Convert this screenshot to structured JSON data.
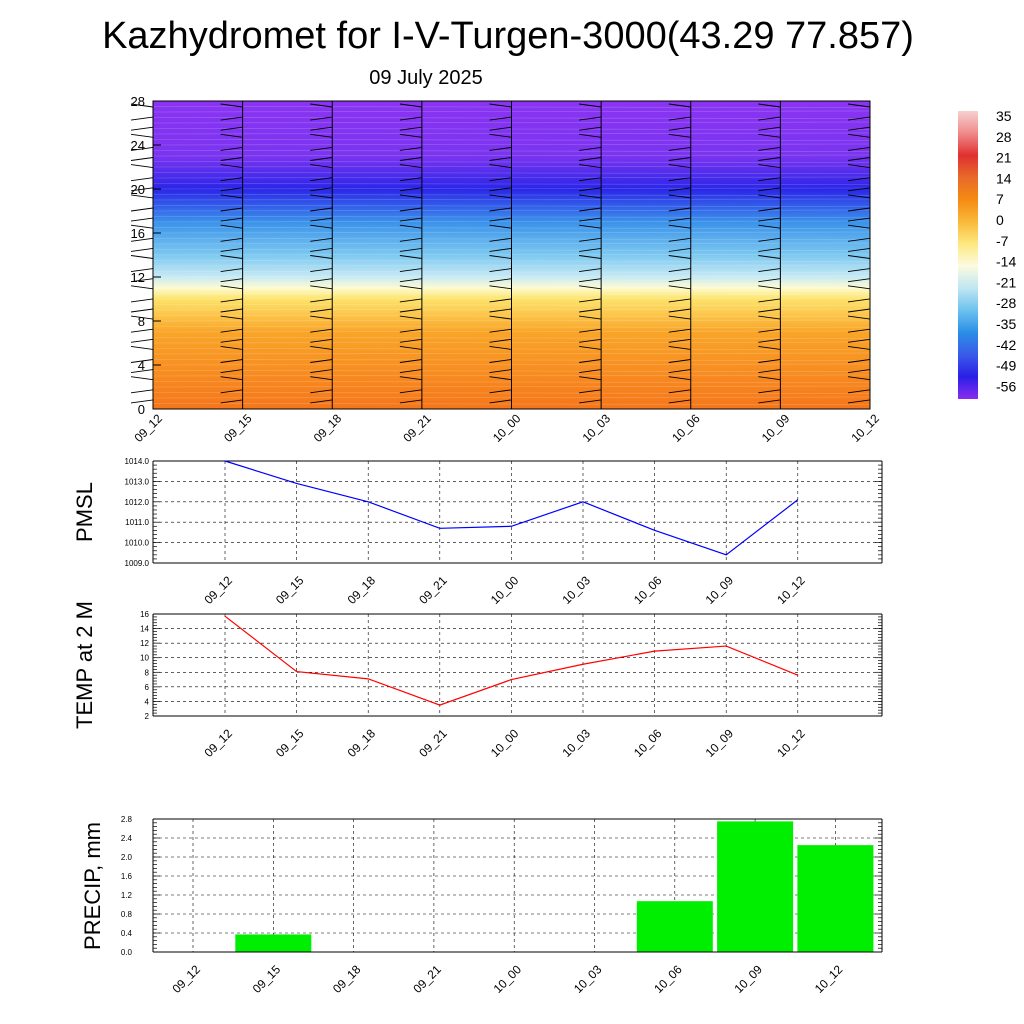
{
  "title": "Kazhydromet for I-V-Turgen-3000(43.29 77.857)",
  "subtitle": "09 July 2025",
  "time_labels": [
    "09_12",
    "09_15",
    "09_18",
    "09_21",
    "10_00",
    "10_03",
    "10_06",
    "10_09",
    "10_12"
  ],
  "chart_data": [
    {
      "type": "heatmap",
      "name": "temperature-wind-cross-section",
      "x": [
        "09_12",
        "09_15",
        "09_18",
        "09_21",
        "10_00",
        "10_03",
        "10_06",
        "10_09",
        "10_12"
      ],
      "ylim": [
        0,
        28
      ],
      "yticks": [
        0,
        4,
        8,
        12,
        16,
        20,
        24,
        28
      ],
      "colorbar": {
        "labels": [
          "35",
          "28",
          "21",
          "14",
          "7",
          "0",
          "-7",
          "-14",
          "-21",
          "-28",
          "-35",
          "-42",
          "-49",
          "-56"
        ],
        "colors": [
          "#f6d0d0",
          "#f08a8a",
          "#e03030",
          "#e86a2a",
          "#f58a12",
          "#f9b93a",
          "#fde880",
          "#fbfbe0",
          "#bfe6f2",
          "#6cc2ee",
          "#2a8ee6",
          "#3a5ae8",
          "#2a20e6",
          "#8a2cf0"
        ]
      },
      "levels_to_color": [
        {
          "y": 0,
          "color": "#f5761a"
        },
        {
          "y": 3,
          "color": "#f78a20"
        },
        {
          "y": 7,
          "color": "#f9a528"
        },
        {
          "y": 10,
          "color": "#fde36a"
        },
        {
          "y": 11,
          "color": "#fdfbd0"
        },
        {
          "y": 12,
          "color": "#c8eaf4"
        },
        {
          "y": 14,
          "color": "#7cc8f0"
        },
        {
          "y": 17,
          "color": "#3a92ea"
        },
        {
          "y": 20,
          "color": "#2a26e8"
        },
        {
          "y": 23,
          "color": "#7a34f0"
        },
        {
          "y": 28,
          "color": "#8a34f2"
        }
      ]
    },
    {
      "type": "line",
      "ylabel": "PMSL",
      "x": [
        "09_12",
        "09_15",
        "09_18",
        "09_21",
        "10_00",
        "10_03",
        "10_06",
        "10_09",
        "10_12"
      ],
      "values": [
        1014.0,
        1012.9,
        1012.0,
        1010.7,
        1010.8,
        1012.0,
        1010.6,
        1009.4,
        1012.1
      ],
      "ylim": [
        1009.0,
        1014.0
      ],
      "yticks": [
        "1009.0",
        "1010.0",
        "1011.0",
        "1012.0",
        "1013.0",
        "1014.0"
      ],
      "color": "#0000ff"
    },
    {
      "type": "line",
      "ylabel": "TEMP at 2 M",
      "x": [
        "09_12",
        "09_15",
        "09_18",
        "09_21",
        "10_00",
        "10_03",
        "10_06",
        "10_09",
        "10_12"
      ],
      "values": [
        15.7,
        8.1,
        7.1,
        3.5,
        7.0,
        9.1,
        10.9,
        11.6,
        7.6
      ],
      "ylim": [
        2,
        16
      ],
      "yticks": [
        "2",
        "4",
        "6",
        "8",
        "10",
        "12",
        "14",
        "16"
      ],
      "color": "#ff0000"
    },
    {
      "type": "bar",
      "ylabel": "PRECIP, mm",
      "categories": [
        "09_12",
        "09_15",
        "09_18",
        "09_21",
        "10_00",
        "10_03",
        "10_06",
        "10_09",
        "10_12"
      ],
      "values": [
        0,
        0.37,
        0,
        0,
        0,
        0,
        1.07,
        2.75,
        2.25
      ],
      "ylim": [
        0,
        2.8
      ],
      "yticks": [
        "0.0",
        "0.4",
        "0.8",
        "1.2",
        "1.6",
        "2.0",
        "2.4",
        "2.8"
      ],
      "color": "#00ee00"
    }
  ]
}
